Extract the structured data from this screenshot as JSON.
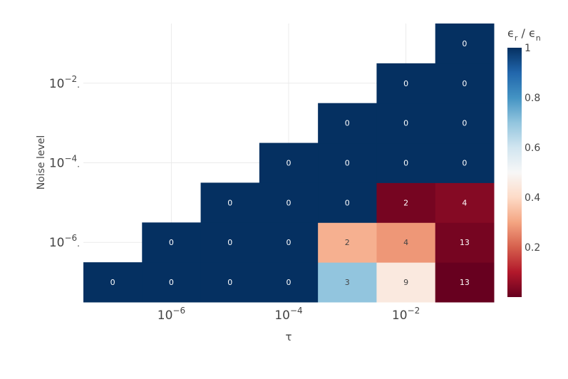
{
  "chart_data": {
    "type": "heatmap",
    "title": "",
    "xlabel": "τ",
    "ylabel": "Noise level",
    "x_tick_labels": [
      {
        "base": "10",
        "exp": "−6"
      },
      {
        "base": "10",
        "exp": "−4"
      },
      {
        "base": "10",
        "exp": "−2"
      }
    ],
    "y_tick_labels": [
      {
        "base": "10",
        "exp": "−2"
      },
      {
        "base": "10",
        "exp": "−4"
      },
      {
        "base": "10",
        "exp": "−6"
      }
    ],
    "x_log10_values": [
      -7,
      -6,
      -5,
      -4,
      -3,
      -2,
      -1
    ],
    "y_log10_values": [
      -7,
      -6,
      -5,
      -4,
      -3,
      -2,
      -1
    ],
    "cells": [
      {
        "xi": 0,
        "yi": 0,
        "color_value": 1.0,
        "label": "0"
      },
      {
        "xi": 1,
        "yi": 0,
        "color_value": 1.0,
        "label": "0"
      },
      {
        "xi": 2,
        "yi": 0,
        "color_value": 1.0,
        "label": "0"
      },
      {
        "xi": 3,
        "yi": 0,
        "color_value": 1.0,
        "label": "0"
      },
      {
        "xi": 4,
        "yi": 0,
        "color_value": 0.7,
        "label": "3"
      },
      {
        "xi": 5,
        "yi": 0,
        "color_value": 0.45,
        "label": "9"
      },
      {
        "xi": 6,
        "yi": 0,
        "color_value": 0.0,
        "label": "13"
      },
      {
        "xi": 1,
        "yi": 1,
        "color_value": 1.0,
        "label": "0"
      },
      {
        "xi": 2,
        "yi": 1,
        "color_value": 1.0,
        "label": "0"
      },
      {
        "xi": 3,
        "yi": 1,
        "color_value": 1.0,
        "label": "0"
      },
      {
        "xi": 4,
        "yi": 1,
        "color_value": 0.32,
        "label": "2"
      },
      {
        "xi": 5,
        "yi": 1,
        "color_value": 0.28,
        "label": "4"
      },
      {
        "xi": 6,
        "yi": 1,
        "color_value": 0.02,
        "label": "13"
      },
      {
        "xi": 2,
        "yi": 2,
        "color_value": 1.0,
        "label": "0"
      },
      {
        "xi": 3,
        "yi": 2,
        "color_value": 1.0,
        "label": "0"
      },
      {
        "xi": 4,
        "yi": 2,
        "color_value": 1.0,
        "label": "0"
      },
      {
        "xi": 5,
        "yi": 2,
        "color_value": 0.02,
        "label": "2"
      },
      {
        "xi": 6,
        "yi": 2,
        "color_value": 0.04,
        "label": "4"
      },
      {
        "xi": 3,
        "yi": 3,
        "color_value": 1.0,
        "label": "0"
      },
      {
        "xi": 4,
        "yi": 3,
        "color_value": 1.0,
        "label": "0"
      },
      {
        "xi": 5,
        "yi": 3,
        "color_value": 1.0,
        "label": "0"
      },
      {
        "xi": 6,
        "yi": 3,
        "color_value": 1.0,
        "label": "0"
      },
      {
        "xi": 4,
        "yi": 4,
        "color_value": 1.0,
        "label": "0"
      },
      {
        "xi": 5,
        "yi": 4,
        "color_value": 1.0,
        "label": "0"
      },
      {
        "xi": 6,
        "yi": 4,
        "color_value": 1.0,
        "label": "0"
      },
      {
        "xi": 5,
        "yi": 5,
        "color_value": 1.0,
        "label": "0"
      },
      {
        "xi": 6,
        "yi": 5,
        "color_value": 1.0,
        "label": "0"
      },
      {
        "xi": 6,
        "yi": 6,
        "color_value": 1.0,
        "label": "0"
      }
    ],
    "colorbar": {
      "title_parts": [
        "ϵ",
        "r",
        " / ϵ",
        "n"
      ],
      "range": [
        0,
        1
      ],
      "ticks": [
        {
          "value": 0.2,
          "label": "0.2"
        },
        {
          "value": 0.4,
          "label": "0.4"
        },
        {
          "value": 0.6,
          "label": "0.6"
        },
        {
          "value": 0.8,
          "label": "0.8"
        },
        {
          "value": 1.0,
          "label": "1"
        }
      ],
      "colorscale": "RdBu",
      "stops": [
        "#67001f",
        "#b2182b",
        "#d6604d",
        "#f4a582",
        "#fddbc7",
        "#f7f7f7",
        "#d1e5f0",
        "#92c5de",
        "#4393c3",
        "#2166ac",
        "#053061"
      ]
    },
    "grid": true,
    "legend": "none"
  }
}
